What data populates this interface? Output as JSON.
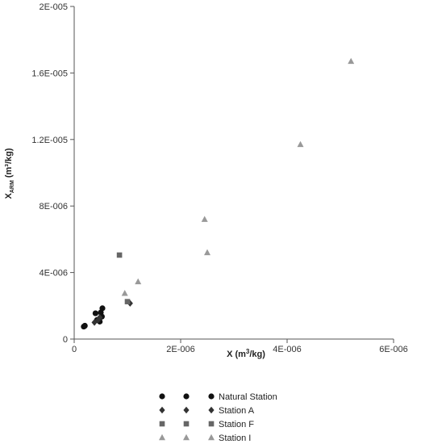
{
  "chart_data": {
    "type": "scatter",
    "title": "",
    "xlabel": {
      "main": "X (m",
      "sup": "3",
      "rest": "/kg)"
    },
    "ylabel": {
      "main": "X",
      "sub": "ARM",
      "rest": " (m³/kg)"
    },
    "xlim": [
      0,
      6e-06
    ],
    "ylim": [
      0,
      2e-05
    ],
    "xticks": [
      {
        "value": 0,
        "label": "0"
      },
      {
        "value": 2e-06,
        "label": "2E-006"
      },
      {
        "value": 4e-06,
        "label": "4E-006"
      },
      {
        "value": 6e-06,
        "label": "6E-006"
      }
    ],
    "yticks": [
      {
        "value": 0,
        "label": "0"
      },
      {
        "value": 4e-06,
        "label": "4E-006"
      },
      {
        "value": 8e-06,
        "label": "8E-006"
      },
      {
        "value": 1.2e-05,
        "label": "1.2E-005"
      },
      {
        "value": 1.6e-05,
        "label": "1.6E-005"
      },
      {
        "value": 2e-05,
        "label": "2E-005"
      }
    ],
    "grid": false,
    "legend_position": "bottom",
    "series": [
      {
        "name": "Natural Station",
        "marker": "circle",
        "color": "#111111",
        "points": [
          {
            "x": 1.8e-07,
            "y": 7.5e-07
          },
          {
            "x": 2e-07,
            "y": 8e-07
          },
          {
            "x": 4e-07,
            "y": 1.55e-06
          },
          {
            "x": 4.3e-07,
            "y": 1.15e-06
          },
          {
            "x": 4.8e-07,
            "y": 1.05e-06
          },
          {
            "x": 5e-07,
            "y": 1.6e-06
          },
          {
            "x": 5.2e-07,
            "y": 1.35e-06
          },
          {
            "x": 5.3e-07,
            "y": 1.85e-06
          }
        ]
      },
      {
        "name": "Station A",
        "marker": "diamond",
        "color": "#333333",
        "points": [
          {
            "x": 3.8e-07,
            "y": 1e-06
          },
          {
            "x": 4.5e-07,
            "y": 1.15e-06
          },
          {
            "x": 4.8e-07,
            "y": 1.3e-06
          },
          {
            "x": 1.05e-06,
            "y": 2.15e-06
          }
        ]
      },
      {
        "name": "Station F",
        "marker": "square",
        "color": "#666666",
        "points": [
          {
            "x": 8.5e-07,
            "y": 5.05e-06
          },
          {
            "x": 1e-06,
            "y": 2.25e-06
          }
        ]
      },
      {
        "name": "Station I",
        "marker": "triangle",
        "color": "#999999",
        "points": [
          {
            "x": 9.5e-07,
            "y": 2.75e-06
          },
          {
            "x": 1.2e-06,
            "y": 3.45e-06
          },
          {
            "x": 2.45e-06,
            "y": 7.2e-06
          },
          {
            "x": 2.5e-06,
            "y": 5.2e-06
          },
          {
            "x": 4.25e-06,
            "y": 1.17e-05
          },
          {
            "x": 5.2e-06,
            "y": 1.67e-05
          }
        ]
      }
    ]
  }
}
